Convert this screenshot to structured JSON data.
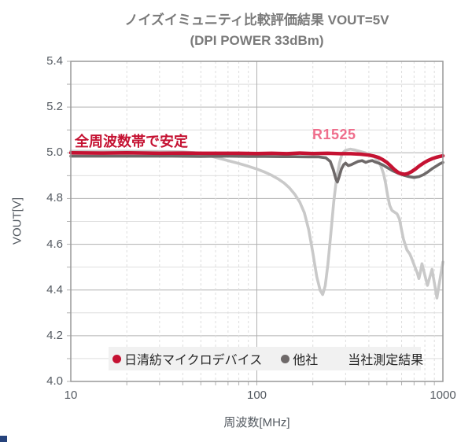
{
  "page": {
    "background": "#ffffff"
  },
  "chart_data": {
    "type": "line",
    "title": "ノイズイミュニティ比較評価結果 VOUT=5V",
    "subtitle": "(DPI POWER 33dBm)",
    "x_axis_title": "周波数[MHz]",
    "y_axis_title": "VOUT[V]",
    "x_scale": "log",
    "xlim": [
      10,
      1000
    ],
    "ylim": [
      4.0,
      5.4
    ],
    "x_tick_labels": [
      "10",
      "100",
      "1000"
    ],
    "x_tick_values": [
      10,
      100,
      1000
    ],
    "y_tick_labels": [
      "5.4",
      "5.2",
      "5.0",
      "4.8",
      "4.6",
      "4.4",
      "4.2",
      "4.0"
    ],
    "y_tick_values": [
      5.4,
      5.2,
      5.0,
      4.8,
      4.6,
      4.4,
      4.2,
      4.0
    ],
    "y_minor_step": 0.1,
    "grid": {
      "minor_color": "#dedede",
      "major_color": "#b0b0b0",
      "border_color": "#999999",
      "vertical_dash": "3 3",
      "grid_on": true
    },
    "legend_position": "bottom-inside",
    "series": [
      {
        "id": "nisshinbo",
        "name": "日清紡マイクロデバイス",
        "color": "#c51232",
        "width": 4.5,
        "points": [
          [
            10,
            5.0
          ],
          [
            15,
            4.999
          ],
          [
            20,
            5.0
          ],
          [
            30,
            4.998
          ],
          [
            40,
            4.999
          ],
          [
            50,
            4.998
          ],
          [
            65,
            4.998
          ],
          [
            80,
            4.998
          ],
          [
            100,
            4.997
          ],
          [
            120,
            4.998
          ],
          [
            145,
            4.996
          ],
          [
            170,
            4.999
          ],
          [
            200,
            4.997
          ],
          [
            240,
            4.998
          ],
          [
            280,
            4.996
          ],
          [
            320,
            4.996
          ],
          [
            360,
            4.994
          ],
          [
            400,
            4.99
          ],
          [
            425,
            4.986
          ],
          [
            450,
            4.98
          ],
          [
            475,
            4.97
          ],
          [
            500,
            4.958
          ],
          [
            525,
            4.942
          ],
          [
            550,
            4.926
          ],
          [
            575,
            4.914
          ],
          [
            600,
            4.908
          ],
          [
            625,
            4.906
          ],
          [
            650,
            4.91
          ],
          [
            680,
            4.918
          ],
          [
            715,
            4.93
          ],
          [
            750,
            4.944
          ],
          [
            790,
            4.956
          ],
          [
            830,
            4.966
          ],
          [
            875,
            4.974
          ],
          [
            920,
            4.98
          ],
          [
            960,
            4.984
          ],
          [
            1000,
            4.987
          ]
        ]
      },
      {
        "id": "other-dark",
        "name": "他社",
        "color": "#6e6969",
        "width": 3.6,
        "points": [
          [
            10,
            4.985
          ],
          [
            20,
            4.985
          ],
          [
            35,
            4.985
          ],
          [
            50,
            4.984
          ],
          [
            70,
            4.985
          ],
          [
            90,
            4.984
          ],
          [
            110,
            4.984
          ],
          [
            135,
            4.983
          ],
          [
            160,
            4.983
          ],
          [
            190,
            4.982
          ],
          [
            215,
            4.982
          ],
          [
            235,
            4.978
          ],
          [
            248,
            4.962
          ],
          [
            258,
            4.925
          ],
          [
            266,
            4.885
          ],
          [
            271,
            4.872
          ],
          [
            277,
            4.895
          ],
          [
            285,
            4.93
          ],
          [
            293,
            4.948
          ],
          [
            300,
            4.955
          ],
          [
            310,
            4.944
          ],
          [
            322,
            4.948
          ],
          [
            335,
            4.955
          ],
          [
            350,
            4.962
          ],
          [
            368,
            4.966
          ],
          [
            385,
            4.958
          ],
          [
            400,
            4.963
          ],
          [
            418,
            4.966
          ],
          [
            435,
            4.959
          ],
          [
            455,
            4.954
          ],
          [
            478,
            4.946
          ],
          [
            505,
            4.934
          ],
          [
            535,
            4.922
          ],
          [
            570,
            4.912
          ],
          [
            610,
            4.903
          ],
          [
            655,
            4.896
          ],
          [
            700,
            4.892
          ],
          [
            745,
            4.896
          ],
          [
            790,
            4.905
          ],
          [
            835,
            4.918
          ],
          [
            880,
            4.932
          ],
          [
            930,
            4.944
          ],
          [
            965,
            4.952
          ],
          [
            1000,
            4.958
          ]
        ]
      },
      {
        "id": "other-light",
        "name": "他社",
        "color": "#c9c9c9",
        "width": 3.6,
        "points": [
          [
            10,
            5.007
          ],
          [
            20,
            5.007
          ],
          [
            30,
            5.006
          ],
          [
            40,
            5.004
          ],
          [
            46,
            5.001
          ],
          [
            53,
            4.992
          ],
          [
            60,
            4.98
          ],
          [
            70,
            4.966
          ],
          [
            80,
            4.953
          ],
          [
            90,
            4.941
          ],
          [
            100,
            4.929
          ],
          [
            110,
            4.916
          ],
          [
            120,
            4.902
          ],
          [
            130,
            4.886
          ],
          [
            140,
            4.868
          ],
          [
            150,
            4.846
          ],
          [
            160,
            4.818
          ],
          [
            170,
            4.785
          ],
          [
            180,
            4.738
          ],
          [
            190,
            4.664
          ],
          [
            200,
            4.562
          ],
          [
            210,
            4.458
          ],
          [
            219,
            4.398
          ],
          [
            226,
            4.38
          ],
          [
            233,
            4.418
          ],
          [
            241,
            4.512
          ],
          [
            250,
            4.648
          ],
          [
            259,
            4.784
          ],
          [
            268,
            4.888
          ],
          [
            278,
            4.955
          ],
          [
            288,
            4.998
          ],
          [
            300,
            5.011
          ],
          [
            318,
            5.016
          ],
          [
            338,
            5.012
          ],
          [
            358,
            5.006
          ],
          [
            382,
            5.0
          ],
          [
            405,
            4.991
          ],
          [
            428,
            4.982
          ],
          [
            448,
            4.965
          ],
          [
            465,
            4.94
          ],
          [
            480,
            4.908
          ],
          [
            492,
            4.868
          ],
          [
            505,
            4.812
          ],
          [
            518,
            4.77
          ],
          [
            532,
            4.748
          ],
          [
            550,
            4.74
          ],
          [
            567,
            4.733
          ],
          [
            584,
            4.71
          ],
          [
            600,
            4.662
          ],
          [
            614,
            4.622
          ],
          [
            641,
            4.575
          ],
          [
            664,
            4.558
          ],
          [
            678,
            4.54
          ],
          [
            708,
            4.5
          ],
          [
            728,
            4.475
          ],
          [
            743,
            4.45
          ],
          [
            758,
            4.48
          ],
          [
            772,
            4.515
          ],
          [
            798,
            4.468
          ],
          [
            826,
            4.42
          ],
          [
            850,
            4.455
          ],
          [
            874,
            4.49
          ],
          [
            900,
            4.43
          ],
          [
            929,
            4.365
          ],
          [
            962,
            4.44
          ],
          [
            1000,
            4.522
          ]
        ]
      }
    ]
  },
  "annotations": {
    "stable": {
      "text": "全周波数帯で安定",
      "color": "#c51232"
    },
    "part": {
      "text": "R1525",
      "color": "#ef6e8c"
    }
  },
  "legend": {
    "nisshinbo": "日清紡マイクロデバイス",
    "other": "他社",
    "note": "当社測定結果",
    "nisshinbo_marker_color": "#c51232",
    "other_marker_color": "#6e6969"
  }
}
